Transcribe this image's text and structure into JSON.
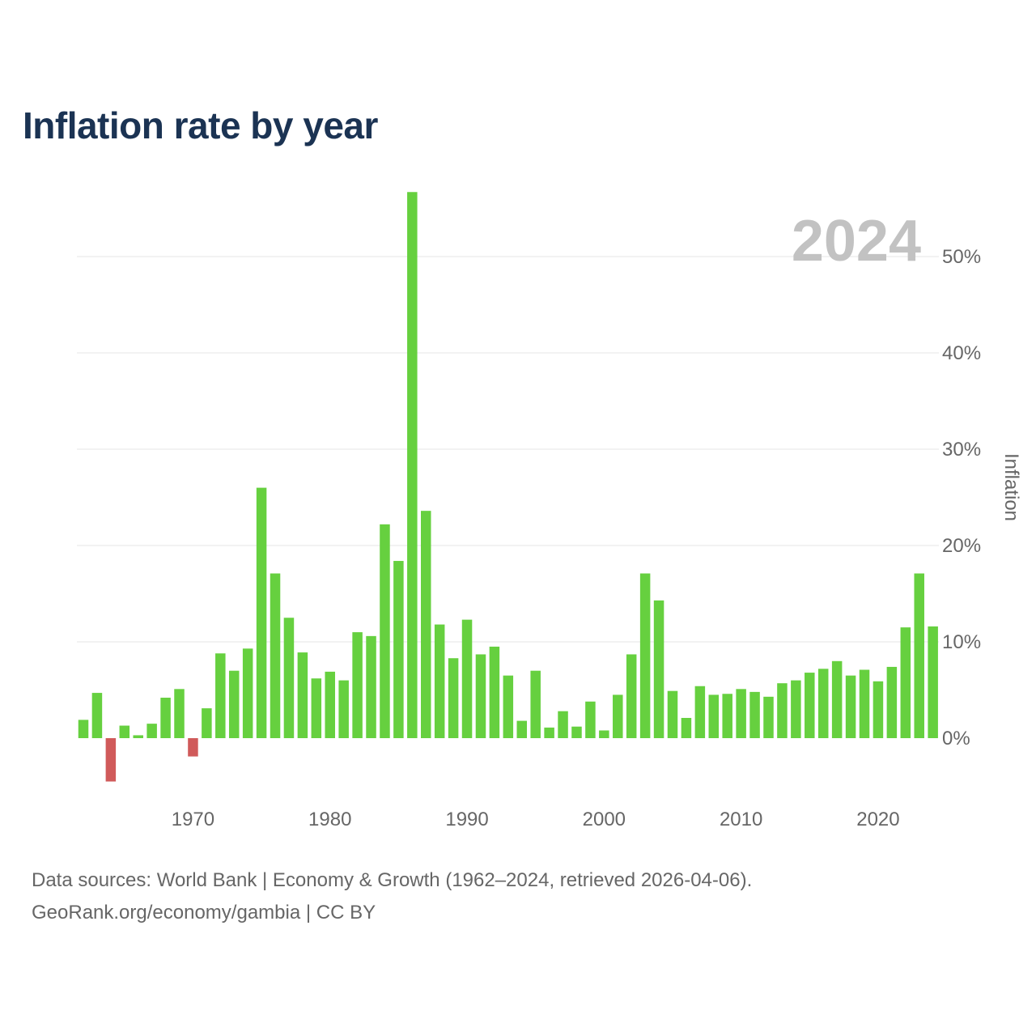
{
  "page": {
    "title": "Inflation rate by year",
    "footer_line1": "Data sources: World Bank | Economy & Growth (1962–2024, retrieved 2026-04-06).",
    "footer_line2": "GeoRank.org/economy/gambia | CC BY"
  },
  "chart_data": {
    "type": "bar",
    "title": "Inflation rate by year",
    "year_label": "2024",
    "ylabel": "Inflation",
    "xlabel": "",
    "ylim": [
      -7,
      57
    ],
    "y_ticks": [
      0,
      10,
      20,
      30,
      40,
      50
    ],
    "y_tick_labels": [
      "0%",
      "10%",
      "20%",
      "30%",
      "40%",
      "50%"
    ],
    "x_ticks": [
      1970,
      1980,
      1990,
      2000,
      2010,
      2020
    ],
    "x_tick_labels": [
      "1970",
      "1980",
      "1990",
      "2000",
      "2010",
      "2020"
    ],
    "grid": true,
    "colors": {
      "positive": "#66d03f",
      "negative": "#d05a5a",
      "grid": "#e6e6e6",
      "axis_text": "#666666",
      "year_label": "#c2c2c2"
    },
    "categories": [
      1962,
      1963,
      1964,
      1965,
      1966,
      1967,
      1968,
      1969,
      1970,
      1971,
      1972,
      1973,
      1974,
      1975,
      1976,
      1977,
      1978,
      1979,
      1980,
      1981,
      1982,
      1983,
      1984,
      1985,
      1986,
      1987,
      1988,
      1989,
      1990,
      1991,
      1992,
      1993,
      1994,
      1995,
      1996,
      1997,
      1998,
      1999,
      2000,
      2001,
      2002,
      2003,
      2004,
      2005,
      2006,
      2007,
      2008,
      2009,
      2010,
      2011,
      2012,
      2013,
      2014,
      2015,
      2016,
      2017,
      2018,
      2019,
      2020,
      2021,
      2022,
      2023,
      2024
    ],
    "values": [
      1.9,
      4.7,
      -4.5,
      1.3,
      0.3,
      1.5,
      4.2,
      5.1,
      -1.9,
      3.1,
      8.8,
      7.0,
      9.3,
      26.0,
      17.1,
      12.5,
      8.9,
      6.2,
      6.9,
      6.0,
      11.0,
      10.6,
      22.2,
      18.4,
      56.7,
      23.6,
      11.8,
      8.3,
      12.3,
      8.7,
      9.5,
      6.5,
      1.8,
      7.0,
      1.1,
      2.8,
      1.2,
      3.8,
      0.8,
      4.5,
      8.7,
      17.1,
      14.3,
      4.9,
      2.1,
      5.4,
      4.5,
      4.6,
      5.1,
      4.8,
      4.3,
      5.7,
      6.0,
      6.8,
      7.2,
      8.0,
      6.5,
      7.1,
      5.9,
      7.4,
      11.5,
      17.1,
      11.6
    ]
  }
}
